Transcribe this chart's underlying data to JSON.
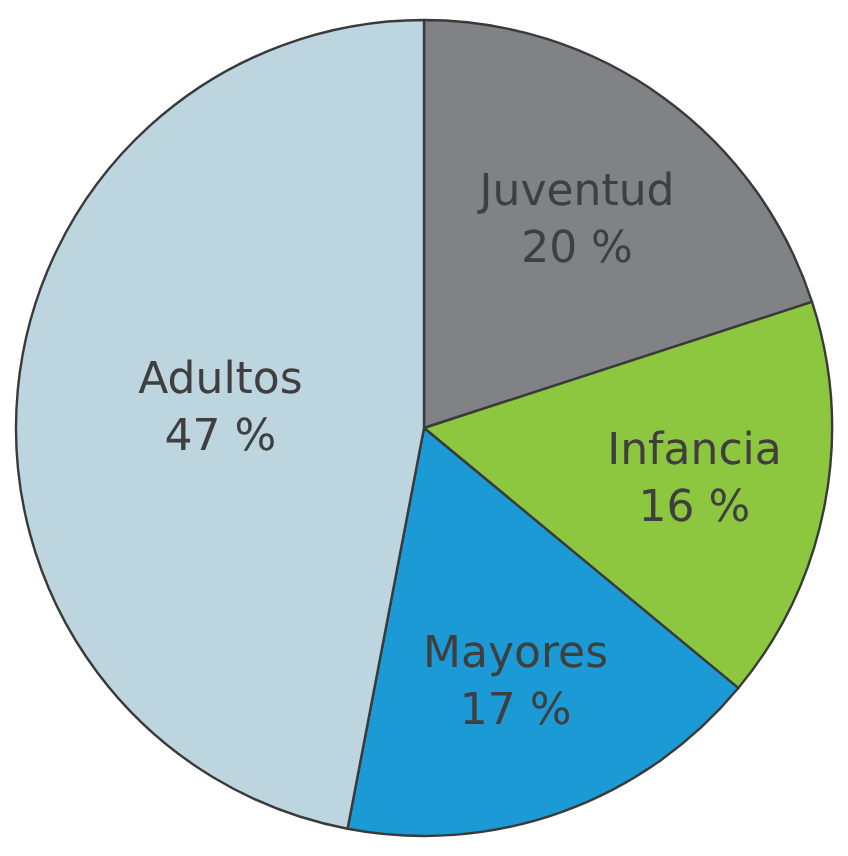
{
  "chart_data": {
    "type": "pie",
    "categories": [
      "Juventud",
      "Infancia",
      "Mayores",
      "Adultos"
    ],
    "values": [
      20,
      16,
      17,
      47
    ],
    "value_labels": [
      "20 %",
      "16 %",
      "17 %",
      "47 %"
    ],
    "colors": [
      "#808285",
      "#8dc63f",
      "#1b9ad6",
      "#bdd5df"
    ],
    "legend": false
  }
}
